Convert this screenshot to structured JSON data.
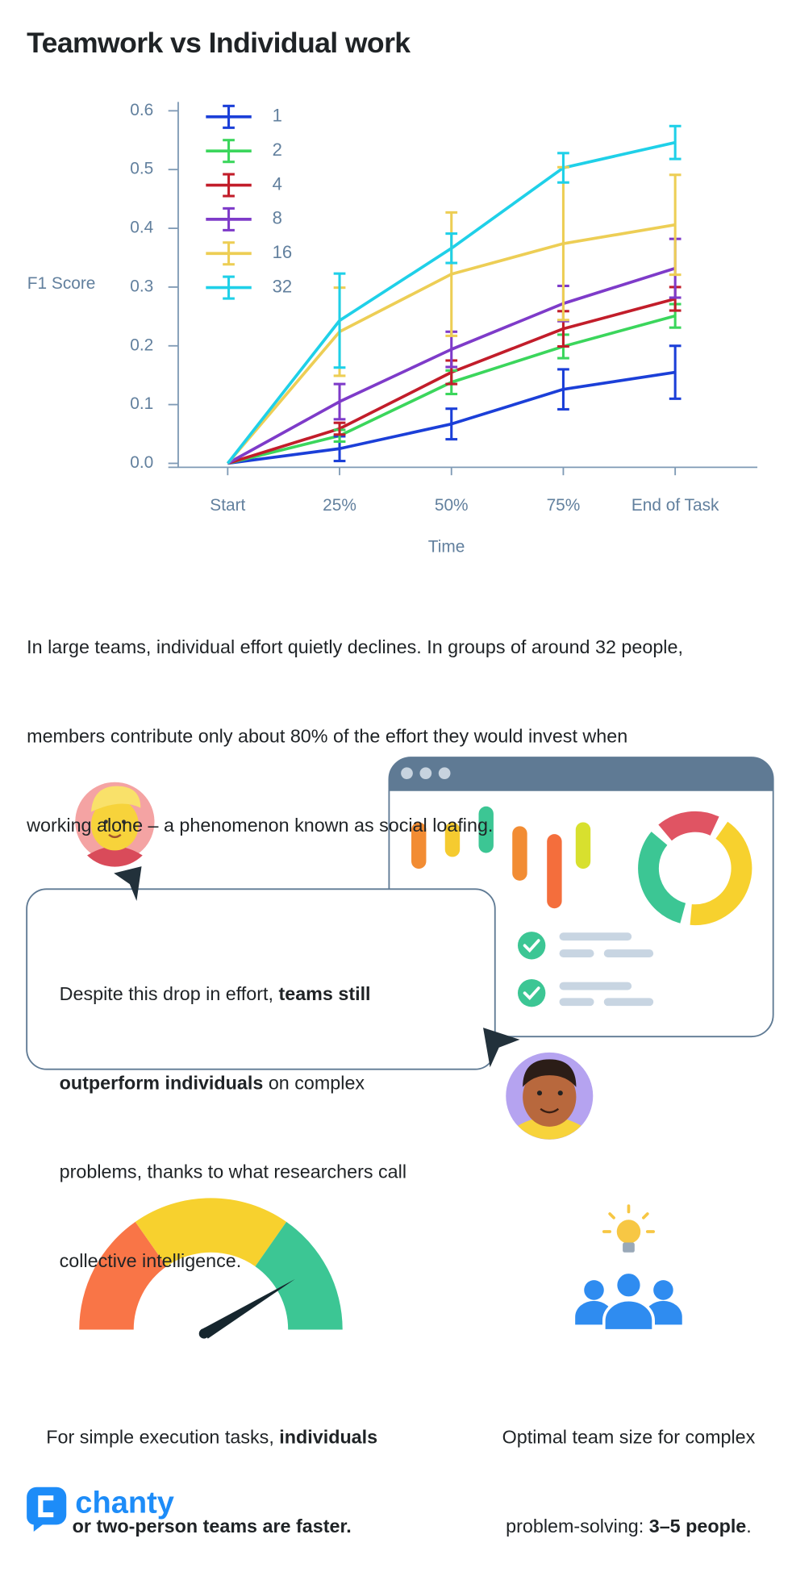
{
  "title": "Teamwork vs Individual work",
  "chart_data": {
    "type": "line",
    "x_label": "Time",
    "y_label": "F1 Score",
    "categories": [
      "Start",
      "25%",
      "50%",
      "75%",
      "End of Task"
    ],
    "ylim": [
      0,
      0.615
    ],
    "yticks": [
      {
        "value": 0,
        "label": "0.0"
      },
      0.1,
      0.2,
      0.3,
      0.4,
      0.5,
      0.6
    ],
    "legend": "upper left",
    "series": [
      {
        "name": "1",
        "color": "#1b3fd8",
        "values": [
          0,
          0.025,
          0.067,
          0.126,
          0.155
        ],
        "errors": [
          null,
          0.021,
          0.026,
          0.034,
          0.045
        ]
      },
      {
        "name": "2",
        "color": "#3bd65c",
        "values": [
          0,
          0.047,
          0.138,
          0.199,
          0.251
        ],
        "errors": [
          null,
          0.01,
          0.02,
          0.02,
          0.02
        ]
      },
      {
        "name": "4",
        "color": "#c21d2a",
        "values": [
          0,
          0.059,
          0.155,
          0.229,
          0.28
        ],
        "errors": [
          null,
          0.01,
          0.02,
          0.03,
          0.02
        ]
      },
      {
        "name": "8",
        "color": "#7e3bc9",
        "values": [
          0,
          0.105,
          0.194,
          0.272,
          0.332
        ],
        "errors": [
          null,
          0.03,
          0.03,
          0.03,
          0.05
        ]
      },
      {
        "name": "16",
        "color": "#edce55",
        "values": [
          0,
          0.224,
          0.322,
          0.374,
          0.406
        ],
        "errors": [
          null,
          0.075,
          0.105,
          0.13,
          0.085
        ]
      },
      {
        "name": "32",
        "color": "#1fd0e8",
        "values": [
          0,
          0.243,
          0.366,
          0.503,
          0.546
        ],
        "errors": [
          null,
          0.08,
          0.025,
          0.025,
          0.028
        ]
      }
    ]
  },
  "intro": {
    "lines": [
      "In large teams, individual effort quietly declines. In groups of around 32 people,",
      "members contribute only about 80% of the effort they would invest when",
      "working alone – a phenomenon known as social loafing."
    ]
  },
  "callout": {
    "lines": [
      [
        "Despite this drop in effort, ",
        "teams still"
      ],
      [
        "outperform individuals",
        " on complex"
      ],
      [
        "problems, thanks to what researchers call"
      ],
      [
        "collective intelligence."
      ]
    ]
  },
  "simple_tasks": {
    "lines": [
      [
        "For simple execution tasks, ",
        "individuals"
      ],
      [
        "or two-person teams are faster."
      ]
    ]
  },
  "team_size": {
    "lines": [
      [
        "Optimal team size for complex"
      ],
      [
        "problem-solving: ",
        "3–5 people",
        "."
      ]
    ]
  },
  "logo": "chanty"
}
